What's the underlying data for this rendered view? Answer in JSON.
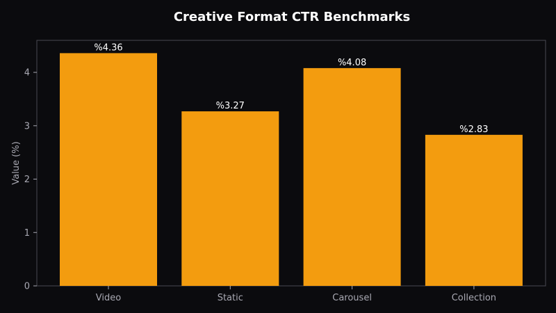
{
  "chart_data": {
    "type": "bar",
    "title": "Creative Format CTR Benchmarks",
    "xlabel": "",
    "ylabel": "Value (%)",
    "categories": [
      "Video",
      "Static",
      "Carousel",
      "Collection"
    ],
    "values": [
      4.36,
      3.27,
      4.08,
      2.83
    ],
    "data_labels": [
      "%4.36",
      "%3.27",
      "%4.08",
      "%2.83"
    ],
    "ylim": [
      0,
      4.6
    ],
    "yticks": [
      0,
      1,
      2,
      3,
      4
    ],
    "ytick_labels": [
      "0",
      "1",
      "2",
      "3",
      "4"
    ],
    "grid": false,
    "colors": {
      "background": "#0b0b0e",
      "plot_border": "#4a4a52",
      "bar": "#f39c0f",
      "text": "#ffffff",
      "muted_text": "#a9a9b3"
    }
  }
}
